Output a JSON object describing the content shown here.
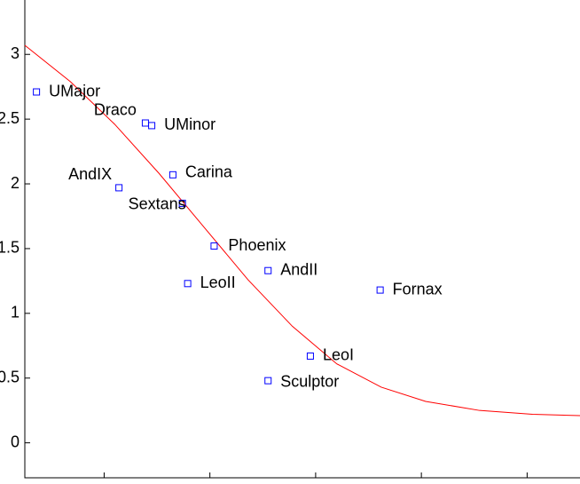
{
  "chart_data": {
    "type": "scatter",
    "xlim": [
      0.25,
      5.5
    ],
    "ylim": [
      -0.27,
      3.42
    ],
    "xticks": [
      1,
      2,
      3,
      4,
      5
    ],
    "yticks": [
      0,
      0.5,
      1,
      1.5,
      2,
      2.5,
      3
    ],
    "points": {
      "color": "#0000ff",
      "labels": [
        "UMajor",
        "Draco",
        "UMinor",
        "AndIX",
        "Carina",
        "Sextans",
        "Phoenix",
        "AndII",
        "LeoII",
        "Fornax",
        "LeoI",
        "Sculptor"
      ],
      "x": [
        0.36,
        1.39,
        1.45,
        1.14,
        1.65,
        1.74,
        2.04,
        2.55,
        1.79,
        3.61,
        2.95,
        2.55
      ],
      "y": [
        2.71,
        2.47,
        2.45,
        1.97,
        2.07,
        1.85,
        1.52,
        1.33,
        1.23,
        1.18,
        0.67,
        0.48
      ]
    },
    "curve": {
      "color": "#ff0000",
      "x": [
        0.25,
        0.68,
        1.1,
        1.52,
        1.94,
        2.36,
        2.78,
        3.2,
        3.62,
        4.04,
        4.55,
        5.05,
        5.5
      ],
      "y": [
        3.07,
        2.79,
        2.46,
        2.08,
        1.67,
        1.26,
        0.9,
        0.61,
        0.43,
        0.32,
        0.25,
        0.22,
        0.21
      ]
    }
  }
}
